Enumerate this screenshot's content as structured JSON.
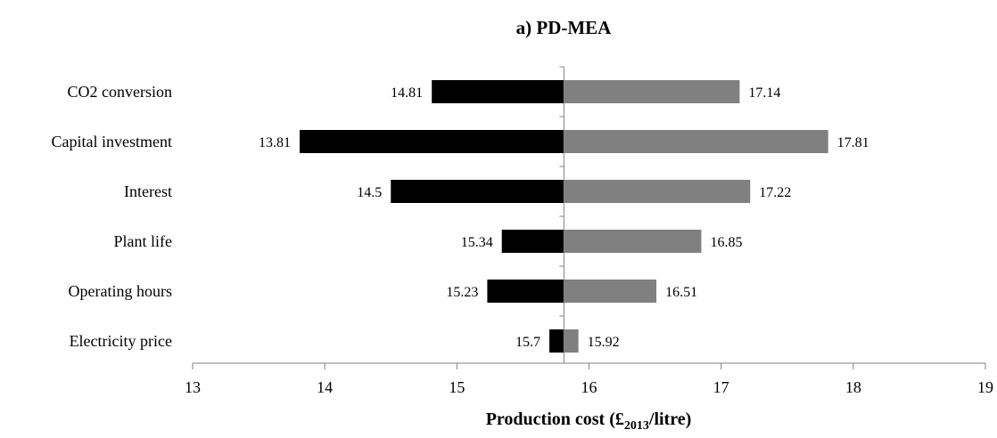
{
  "chart_data": {
    "type": "bar",
    "orientation": "horizontal",
    "subtype": "tornado",
    "title": "a) PD-MEA",
    "xlabel": {
      "main": "Production cost (£",
      "sub": "2013",
      "unit": "/litre)"
    },
    "xlim": [
      13,
      19
    ],
    "xticks": [
      13,
      14,
      15,
      16,
      17,
      18,
      19
    ],
    "base_value": 15.81,
    "categories": [
      "CO2 conversion",
      "Capital investment",
      "Interest",
      "Plant life",
      "Operating hours",
      "Electricity price"
    ],
    "series": [
      {
        "values": [
          14.81,
          13.81,
          14.5,
          15.34,
          15.23,
          15.7
        ],
        "labels": [
          "14.81",
          "13.81",
          "14.5",
          "15.34",
          "15.23",
          "15.7"
        ],
        "color": "#000000"
      },
      {
        "values": [
          17.14,
          17.81,
          17.22,
          16.85,
          16.51,
          15.92
        ],
        "labels": [
          "17.14",
          "17.81",
          "17.22",
          "16.85",
          "16.51",
          "15.92"
        ],
        "color": "#808080"
      }
    ]
  }
}
